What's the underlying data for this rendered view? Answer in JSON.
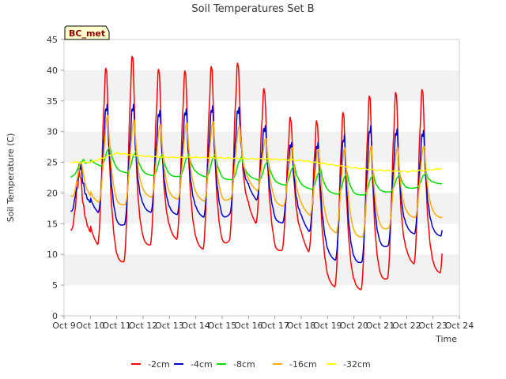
{
  "chart_data": {
    "type": "line",
    "title": "Soil Temperatures Set B",
    "xlabel": "Time",
    "ylabel": "Soil Temperature (C)",
    "ylim": [
      0,
      45
    ],
    "yticks": [
      0,
      5,
      10,
      15,
      20,
      25,
      30,
      35,
      40,
      45
    ],
    "xlim": [
      9,
      24
    ],
    "xticks": [
      9,
      10,
      11,
      12,
      13,
      14,
      15,
      16,
      17,
      18,
      19,
      20,
      21,
      22,
      23,
      24
    ],
    "xtick_labels": [
      "Oct 9",
      "Oct 10",
      "Oct 11",
      "Oct 12",
      "Oct 13",
      "Oct 14",
      "Oct 15",
      "Oct 16",
      "Oct 17",
      "Oct 18",
      "Oct 19",
      "Oct 20",
      "Oct 21",
      "Oct 22",
      "Oct 23",
      "Oct 24"
    ],
    "grid": "horizontal bands",
    "legend_position": "bottom",
    "badge": "BC_met",
    "series": [
      {
        "name": "-2cm",
        "color": "#ff0000",
        "days": [
          9.25,
          10,
          11,
          12,
          13,
          14,
          15,
          16,
          17,
          18,
          19,
          20,
          21,
          22,
          23
        ],
        "max": [
          16,
          38,
          43.5,
          42,
          39,
          41.5,
          40.5,
          42.5,
          32,
          33,
          31,
          36,
          36.5,
          37,
          37.5
        ],
        "min": [
          14,
          13,
          8,
          11,
          13,
          11,
          10.5,
          17,
          10,
          12.5,
          5,
          4,
          5,
          9,
          7
        ]
      },
      {
        "name": "-4cm",
        "color": "#0000cc",
        "days": [
          9.25,
          10,
          11,
          12,
          13,
          14,
          15,
          16,
          17,
          18,
          19,
          20,
          21,
          22,
          23
        ],
        "max": [
          20,
          34,
          35,
          34,
          33,
          34.5,
          34,
          34,
          28,
          28.5,
          28,
          31,
          31,
          30,
          30.5
        ],
        "min": [
          17,
          18,
          14,
          17,
          16.5,
          16.5,
          15,
          20.5,
          15,
          15.5,
          9.5,
          8,
          10.5,
          13.5,
          13
        ]
      },
      {
        "name": "-8cm",
        "color": "#00dd00",
        "days": [
          9.25,
          10,
          11,
          12,
          13,
          14,
          15,
          16,
          17,
          18,
          19,
          20,
          21,
          22,
          23
        ],
        "max": [
          24,
          28,
          27,
          26.5,
          26,
          26.5,
          26,
          25.5,
          25,
          24,
          23.5,
          23,
          23,
          23,
          23.5
        ],
        "min": [
          22.5,
          25,
          23.5,
          23,
          22.5,
          23,
          22,
          22.5,
          21.5,
          21,
          20,
          19.5,
          20,
          20.5,
          21.5
        ]
      },
      {
        "name": "-16cm",
        "color": "#ffaa00",
        "days": [
          9.25,
          10,
          11,
          12,
          13,
          14,
          15,
          16,
          17,
          18,
          19,
          20,
          21,
          22,
          23
        ],
        "max": [
          21,
          33,
          32.5,
          31.5,
          31,
          32,
          31.5,
          30.5,
          27.5,
          27.5,
          27,
          28,
          27.5,
          27.5,
          28
        ],
        "min": [
          19.5,
          19,
          17.5,
          19.5,
          19,
          19,
          18,
          21.5,
          18,
          17.5,
          14,
          12.5,
          13.5,
          16,
          16
        ]
      },
      {
        "name": "-32cm",
        "color": "#ffff00",
        "days": [
          9.25,
          10,
          11,
          12,
          13,
          14,
          15,
          16,
          17,
          18,
          19,
          20,
          21,
          22,
          23,
          23.35
        ],
        "values": [
          25,
          25,
          26.5,
          26,
          25.8,
          25.8,
          25.7,
          25.6,
          25.5,
          25.3,
          24.7,
          24.1,
          23.7,
          23.5,
          23.8,
          24
        ]
      }
    ]
  }
}
